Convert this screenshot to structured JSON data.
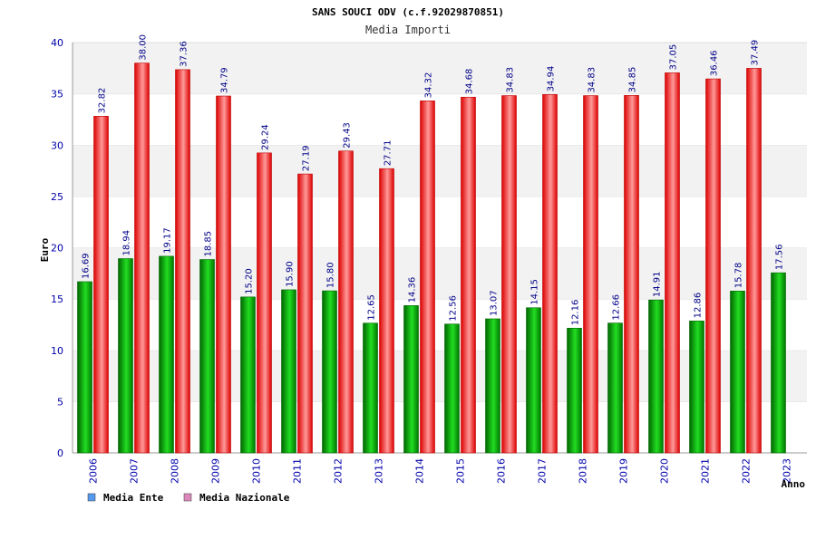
{
  "chart_data": {
    "type": "bar",
    "title": "SANS SOUCI ODV (c.f.92029870851)",
    "subtitle": "Media Importi",
    "xlabel": "Anno",
    "ylabel": "Euro",
    "ylim": [
      0,
      40
    ],
    "yticks": [
      0,
      5,
      10,
      15,
      20,
      25,
      30,
      35,
      40
    ],
    "grid": "horizontal bands",
    "legend_position": "bottom-left",
    "categories": [
      "2006",
      "2007",
      "2008",
      "2009",
      "2010",
      "2011",
      "2012",
      "2013",
      "2014",
      "2015",
      "2016",
      "2017",
      "2018",
      "2019",
      "2020",
      "2021",
      "2022",
      "2023"
    ],
    "series": [
      {
        "name": "Media Ente",
        "legend_color": "#5599ee",
        "bar_color": "#00aa00",
        "values": [
          16.69,
          18.94,
          19.17,
          18.85,
          15.2,
          15.9,
          15.8,
          12.65,
          14.36,
          12.56,
          13.07,
          14.15,
          12.16,
          12.66,
          14.91,
          12.86,
          15.78,
          17.56
        ],
        "labels": [
          "16.69",
          "18.94",
          "19.17",
          "18.85",
          "15.20",
          "15.90",
          "15.80",
          "12.65",
          "14.36",
          "12.56",
          "13.07",
          "14.15",
          "12.16",
          "12.66",
          "14.91",
          "12.86",
          "15.78",
          "17.56"
        ]
      },
      {
        "name": "Media Nazionale",
        "legend_color": "#dd88bb",
        "bar_color": "#ee2222",
        "values": [
          32.82,
          38.0,
          37.36,
          34.79,
          29.24,
          27.19,
          29.43,
          27.71,
          34.32,
          34.68,
          34.83,
          34.94,
          34.83,
          34.85,
          37.05,
          36.46,
          37.49,
          null
        ],
        "labels": [
          "32.82",
          "38.00",
          "37.36",
          "34.79",
          "29.24",
          "27.19",
          "29.43",
          "27.71",
          "34.32",
          "34.68",
          "34.83",
          "34.94",
          "34.83",
          "34.85",
          "37.05",
          "36.46",
          "37.49",
          null
        ]
      }
    ]
  }
}
